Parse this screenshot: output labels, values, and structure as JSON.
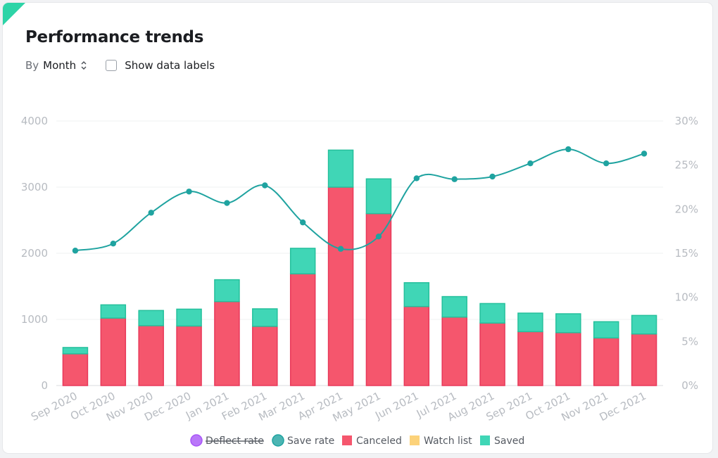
{
  "header": {
    "title": "Performance trends",
    "by_label": "By",
    "period_value": "Month",
    "show_labels_text": "Show data labels"
  },
  "colors": {
    "canceled": "#f5566d",
    "canceled_stroke": "#e8395a",
    "saved": "#40d6b6",
    "saved_stroke": "#25c09c",
    "save_rate": "#1fa3a0",
    "deflect_rate": "#a855f7",
    "watch_list": "#fcd27a"
  },
  "chart_data": {
    "type": "bar",
    "categories": [
      "Sep 2020",
      "Oct 2020",
      "Nov 2020",
      "Dec 2020",
      "Jan 2021",
      "Feb 2021",
      "Mar 2021",
      "Apr 2021",
      "May 2021",
      "Jun 2021",
      "Jul 2021",
      "Aug 2021",
      "Sep 2021",
      "Oct 2021",
      "Nov 2021",
      "Dec 2021"
    ],
    "series": [
      {
        "name": "Canceled",
        "kind": "bar",
        "stack": true,
        "axis": "left",
        "values": [
          480,
          1020,
          905,
          900,
          1270,
          895,
          1690,
          3000,
          2600,
          1195,
          1035,
          945,
          815,
          800,
          720,
          780
        ]
      },
      {
        "name": "Saved",
        "kind": "bar",
        "stack": true,
        "axis": "left",
        "values": [
          95,
          200,
          230,
          255,
          330,
          265,
          385,
          560,
          525,
          360,
          310,
          295,
          280,
          285,
          245,
          280
        ]
      },
      {
        "name": "Save rate",
        "kind": "line",
        "axis": "right",
        "values": [
          15.3,
          16.1,
          19.6,
          22.0,
          20.7,
          22.7,
          18.5,
          15.5,
          16.9,
          23.5,
          23.4,
          23.7,
          25.2,
          26.8,
          25.2,
          26.3
        ]
      }
    ],
    "legend": [
      {
        "name": "Deflect rate",
        "marker": "circle",
        "hidden": true
      },
      {
        "name": "Save rate",
        "marker": "circle",
        "hidden": false
      },
      {
        "name": "Canceled",
        "marker": "square",
        "hidden": false
      },
      {
        "name": "Watch list",
        "marker": "square",
        "hidden": false
      },
      {
        "name": "Saved",
        "marker": "square",
        "hidden": false
      }
    ],
    "y_left": {
      "min": 0,
      "max": 4000,
      "ticks": [
        0,
        1000,
        2000,
        3000,
        4000
      ]
    },
    "y_right": {
      "min": 0,
      "max": 30,
      "ticks": [
        "0%",
        "5%",
        "10%",
        "15%",
        "20%",
        "25%",
        "30%"
      ]
    },
    "grid": true,
    "legend_position": "bottom"
  }
}
